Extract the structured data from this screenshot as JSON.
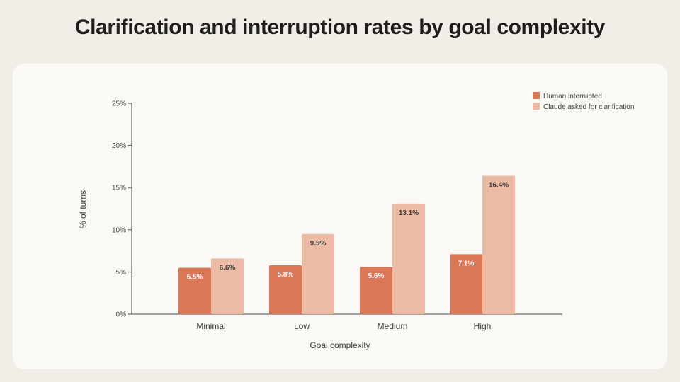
{
  "title": "Clarification and interruption rates by goal complexity",
  "colors": {
    "background": "#f0eee6",
    "card": "#faf9f5",
    "series_dark": "#d97757",
    "series_light": "#ebbba6",
    "axis": "#4a4945"
  },
  "chart_data": {
    "type": "bar",
    "categories": [
      "Minimal",
      "Low",
      "Medium",
      "High"
    ],
    "series": [
      {
        "name": "Human interrupted",
        "values": [
          5.5,
          5.8,
          5.6,
          7.1
        ],
        "labels": [
          "5.5%",
          "5.8%",
          "5.6%",
          "7.1%"
        ]
      },
      {
        "name": "Claude asked for clarification",
        "values": [
          6.6,
          9.5,
          13.1,
          16.4
        ],
        "labels": [
          "6.6%",
          "9.5%",
          "13.1%",
          "16.4%"
        ]
      }
    ],
    "xlabel": "Goal complexity",
    "ylabel": "% of turns",
    "ylim": [
      0,
      25
    ],
    "yticks": [
      0,
      5,
      10,
      15,
      20,
      25
    ],
    "ytick_labels": [
      "0%",
      "5%",
      "10%",
      "15%",
      "20%",
      "25%"
    ],
    "legend": "top-right",
    "grid": false
  }
}
